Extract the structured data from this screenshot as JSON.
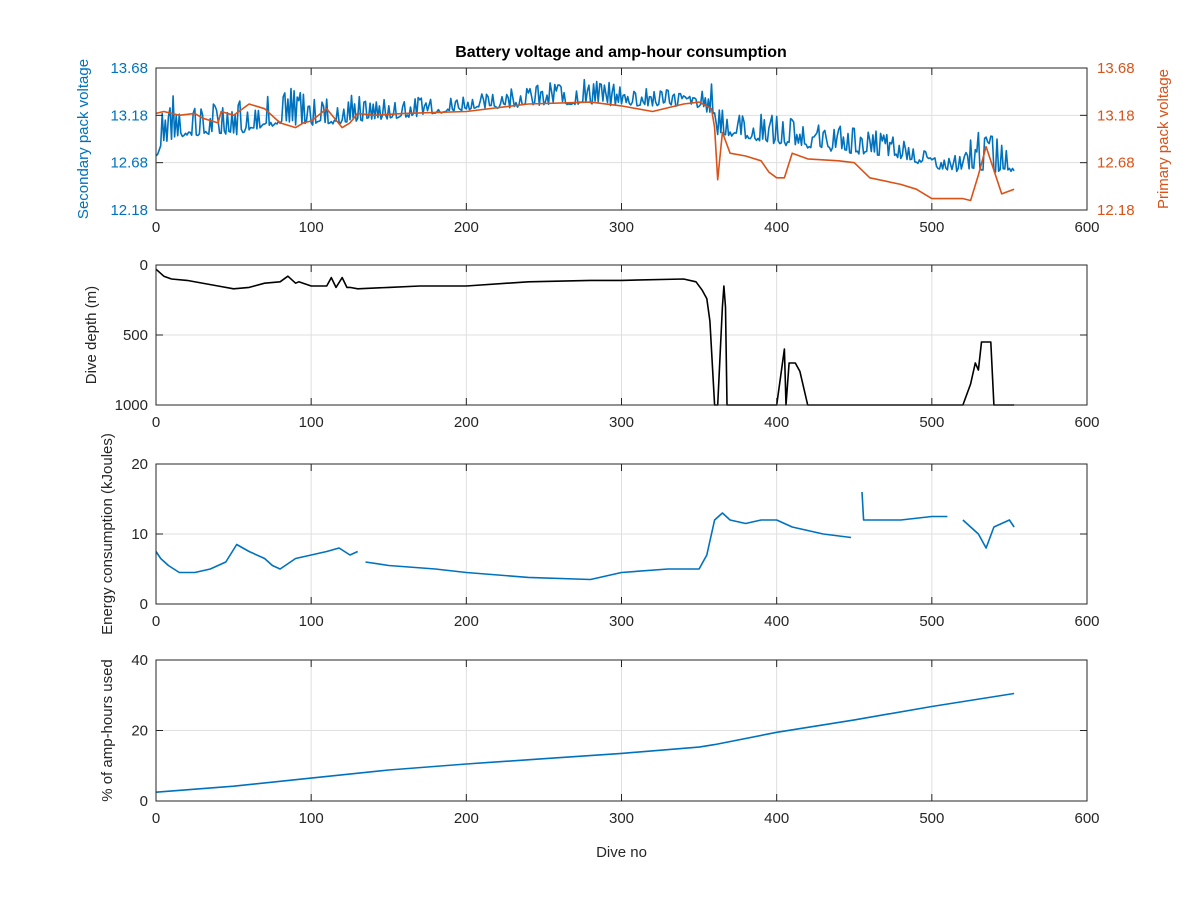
{
  "figure": {
    "title": "Battery voltage and amp-hour consumption"
  },
  "colors": {
    "blue": "#0072BD",
    "orange": "#D95319",
    "black": "#000000"
  },
  "chart_data": [
    {
      "type": "line",
      "id": "voltage",
      "title": "Battery voltage and amp-hour consumption",
      "xlabel": "",
      "ylabel_left": "Secondary pack voltage",
      "ylabel_right": "Primary pack voltage",
      "xlim": [
        0,
        600
      ],
      "xticks": [
        0,
        100,
        200,
        300,
        400,
        500,
        600
      ],
      "ylim_left": [
        12.18,
        13.68
      ],
      "yticks_left": [
        "12.18",
        "12.68",
        "13.18",
        "13.68"
      ],
      "ylim_right": [
        12.18,
        13.68
      ],
      "yticks_right": [
        "12.18",
        "12.68",
        "13.18",
        "13.68"
      ],
      "grid": true,
      "series": [
        {
          "axis": "left",
          "color": "#0072BD",
          "noisy_spikes": true,
          "x": [
            0,
            5,
            10,
            20,
            40,
            50,
            60,
            80,
            100,
            120,
            140,
            160,
            200,
            240,
            280,
            300,
            330,
            350,
            360,
            362,
            370,
            380,
            400,
            420,
            440,
            460,
            480,
            490,
            500,
            510,
            520,
            530,
            540,
            550,
            553
          ],
          "y": [
            12.75,
            12.9,
            12.95,
            12.98,
            13.0,
            12.98,
            13.05,
            13.1,
            13.1,
            13.12,
            13.15,
            13.18,
            13.25,
            13.3,
            13.32,
            13.3,
            13.3,
            13.28,
            13.2,
            13.0,
            12.98,
            12.95,
            12.9,
            12.85,
            12.82,
            12.78,
            12.75,
            12.7,
            12.65,
            12.62,
            12.6,
            12.62,
            12.6,
            12.6,
            12.6
          ],
          "spike": [
            0.55,
            0.5,
            0.45,
            0.35,
            0.3,
            0.35,
            0.35,
            0.4,
            0.35,
            0.3,
            0.2,
            0.18,
            0.15,
            0.2,
            0.25,
            0.2,
            0.15,
            0.12,
            0.4,
            0.35,
            0.3,
            0.25,
            0.3,
            0.25,
            0.25,
            0.3,
            0.2,
            0.2,
            0.1,
            0.1,
            0.2,
            0.45,
            0.35,
            0.45,
            0.3
          ]
        },
        {
          "axis": "right",
          "color": "#D95319",
          "noisy_spikes": false,
          "x": [
            0,
            5,
            15,
            25,
            30,
            40,
            42,
            50,
            60,
            70,
            80,
            90,
            95,
            100,
            110,
            120,
            125,
            130,
            140,
            160,
            200,
            240,
            280,
            300,
            320,
            340,
            350,
            358,
            360,
            362,
            365,
            370,
            380,
            390,
            395,
            400,
            405,
            410,
            420,
            440,
            450,
            460,
            480,
            490,
            500,
            510,
            520,
            525,
            530,
            535,
            540,
            545,
            553
          ],
          "y": [
            13.2,
            13.22,
            13.18,
            13.2,
            13.15,
            13.1,
            13.22,
            13.18,
            13.3,
            13.25,
            13.1,
            13.05,
            13.1,
            13.12,
            13.25,
            13.05,
            13.1,
            13.2,
            13.18,
            13.2,
            13.22,
            13.3,
            13.32,
            13.28,
            13.22,
            13.3,
            13.32,
            13.25,
            13.05,
            12.5,
            13.0,
            12.78,
            12.75,
            12.7,
            12.58,
            12.52,
            12.52,
            12.78,
            12.72,
            12.7,
            12.68,
            12.52,
            12.45,
            12.4,
            12.3,
            12.3,
            12.3,
            12.28,
            12.55,
            12.85,
            12.6,
            12.35,
            12.4
          ]
        }
      ]
    },
    {
      "type": "line",
      "id": "depth",
      "xlabel": "",
      "ylabel": "Dive depth (m)",
      "xlim": [
        0,
        600
      ],
      "xticks": [
        0,
        100,
        200,
        300,
        400,
        500,
        600
      ],
      "ylim": [
        1000,
        0
      ],
      "yticks": [
        "0",
        "500",
        "1000"
      ],
      "reversed_y": true,
      "grid": true,
      "series": [
        {
          "color": "#000000",
          "x": [
            0,
            5,
            10,
            20,
            40,
            50,
            60,
            70,
            80,
            85,
            90,
            92,
            100,
            110,
            113,
            116,
            120,
            123,
            125,
            130,
            150,
            170,
            200,
            240,
            280,
            300,
            340,
            348,
            352,
            355,
            357,
            360,
            362,
            365,
            366,
            367,
            368,
            370,
            380,
            400,
            405,
            406,
            408,
            412,
            415,
            420,
            440,
            480,
            500,
            520,
            525,
            528,
            530,
            532,
            535,
            538,
            540,
            550,
            553
          ],
          "y": [
            30,
            80,
            100,
            110,
            150,
            170,
            160,
            130,
            120,
            80,
            130,
            120,
            150,
            150,
            90,
            160,
            90,
            160,
            160,
            170,
            160,
            150,
            150,
            120,
            110,
            110,
            100,
            120,
            180,
            240,
            400,
            1000,
            1000,
            300,
            150,
            300,
            1000,
            1000,
            1000,
            1000,
            600,
            1000,
            700,
            700,
            760,
            1000,
            1000,
            1000,
            1000,
            1000,
            850,
            700,
            750,
            550,
            550,
            550,
            1000,
            1000,
            1000
          ]
        }
      ]
    },
    {
      "type": "line",
      "id": "energy",
      "xlabel": "",
      "ylabel": "Energy consumption (kJoules)",
      "xlim": [
        0,
        600
      ],
      "xticks": [
        0,
        100,
        200,
        300,
        400,
        500,
        600
      ],
      "ylim": [
        0,
        20
      ],
      "yticks": [
        "0",
        "10",
        "20"
      ],
      "grid": true,
      "series": [
        {
          "color": "#0072BD",
          "x": [
            0,
            3,
            8,
            15,
            25,
            35,
            45,
            52,
            60,
            70,
            75,
            80,
            90,
            100,
            110,
            118,
            125,
            130,
            131,
            135,
            150,
            180,
            200,
            240,
            280,
            300,
            330,
            350,
            355,
            360,
            365,
            370,
            380,
            390,
            400,
            410,
            420,
            430,
            448,
            449,
            455,
            456,
            460,
            480,
            500,
            510,
            511,
            520,
            530,
            535,
            540,
            550,
            553
          ],
          "y": [
            7.5,
            6.5,
            5.5,
            4.5,
            4.5,
            5.0,
            6.0,
            8.5,
            7.5,
            6.5,
            5.5,
            5.0,
            6.5,
            7.0,
            7.5,
            8.0,
            7.0,
            7.5,
            null,
            6.0,
            5.5,
            5.0,
            4.5,
            3.8,
            3.5,
            4.5,
            5.0,
            5.0,
            7.0,
            12.0,
            13.0,
            12.0,
            11.5,
            12.0,
            12.0,
            11.0,
            10.5,
            10.0,
            9.5,
            null,
            16.0,
            12.0,
            12.0,
            12.0,
            12.5,
            12.5,
            null,
            12.0,
            10.0,
            8.0,
            11.0,
            12.0,
            11.0
          ]
        }
      ]
    },
    {
      "type": "line",
      "id": "amp_hours",
      "xlabel": "Dive no",
      "ylabel": "% of amp-hours used",
      "xlim": [
        0,
        600
      ],
      "xticks": [
        0,
        100,
        200,
        300,
        400,
        500,
        600
      ],
      "ylim": [
        0,
        40
      ],
      "yticks": [
        "0",
        "20",
        "40"
      ],
      "grid": true,
      "series": [
        {
          "color": "#0072BD",
          "x": [
            0,
            50,
            100,
            150,
            200,
            250,
            300,
            350,
            360,
            400,
            450,
            500,
            553
          ],
          "y": [
            2.5,
            4.2,
            6.5,
            8.8,
            10.5,
            12.0,
            13.5,
            15.3,
            16.0,
            19.5,
            23.0,
            26.8,
            30.5
          ]
        }
      ]
    }
  ]
}
